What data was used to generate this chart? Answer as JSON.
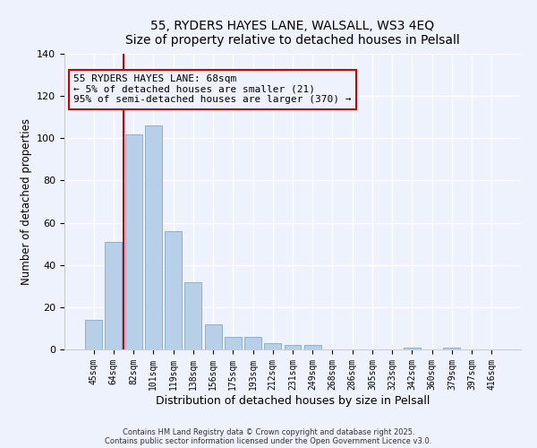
{
  "title": "55, RYDERS HAYES LANE, WALSALL, WS3 4EQ",
  "subtitle": "Size of property relative to detached houses in Pelsall",
  "xlabel": "Distribution of detached houses by size in Pelsall",
  "ylabel": "Number of detached properties",
  "bar_labels": [
    "45sqm",
    "64sqm",
    "82sqm",
    "101sqm",
    "119sqm",
    "138sqm",
    "156sqm",
    "175sqm",
    "193sqm",
    "212sqm",
    "231sqm",
    "249sqm",
    "268sqm",
    "286sqm",
    "305sqm",
    "323sqm",
    "342sqm",
    "360sqm",
    "379sqm",
    "397sqm",
    "416sqm"
  ],
  "bar_values": [
    14,
    51,
    102,
    106,
    56,
    32,
    12,
    6,
    6,
    3,
    2,
    2,
    0,
    0,
    0,
    0,
    1,
    0,
    1,
    0,
    0
  ],
  "bar_color": "#b8cfe8",
  "bar_edge_color": "#8ab0d0",
  "vline_color": "#cc0000",
  "vline_x_idx": 1.5,
  "ylim": [
    0,
    140
  ],
  "yticks": [
    0,
    20,
    40,
    60,
    80,
    100,
    120,
    140
  ],
  "annotation_line1": "55 RYDERS HAYES LANE: 68sqm",
  "annotation_line2": "← 5% of detached houses are smaller (21)",
  "annotation_line3": "95% of semi-detached houses are larger (370) →",
  "bg_color": "#eef2fc",
  "grid_color": "#ffffff",
  "footer_line1": "Contains HM Land Registry data © Crown copyright and database right 2025.",
  "footer_line2": "Contains public sector information licensed under the Open Government Licence v3.0."
}
